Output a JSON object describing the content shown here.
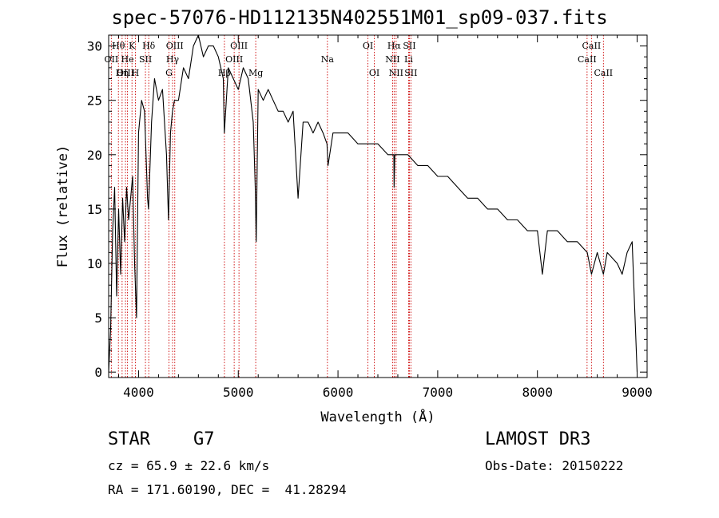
{
  "title": "spec-57076-HD112135N402551M01_sp09-037.fits",
  "object_class": "STAR",
  "subclass": "G7",
  "survey": "LAMOST DR3",
  "redshift_text": "cz = 65.9 ± 22.6 km/s",
  "obs_date_text": "Obs-Date: 20150222",
  "coords_text": "RA = 171.60190, DEC =  41.28294",
  "colors": {
    "axis": "#000000",
    "spectrum": "#000000",
    "lines": "#cc0000"
  },
  "chart_data": {
    "type": "line",
    "title": "spec-57076-HD112135N402551M01_sp09-037.fits",
    "xlabel": "Wavelength (Å)",
    "ylabel": "Flux (relative)",
    "xlim": [
      3700,
      9100
    ],
    "ylim": [
      -0.5,
      31
    ],
    "xticks": [
      4000,
      5000,
      6000,
      7000,
      8000,
      9000
    ],
    "yticks": [
      0,
      5,
      10,
      15,
      20,
      25,
      30
    ],
    "series": [
      {
        "name": "spectrum",
        "x": [
          3700,
          3720,
          3740,
          3760,
          3780,
          3800,
          3820,
          3840,
          3860,
          3880,
          3900,
          3920,
          3940,
          3960,
          3980,
          4000,
          4030,
          4060,
          4090,
          4100,
          4130,
          4160,
          4200,
          4240,
          4280,
          4300,
          4320,
          4340,
          4360,
          4400,
          4450,
          4500,
          4550,
          4600,
          4650,
          4700,
          4750,
          4800,
          4850,
          4860,
          4900,
          4950,
          5000,
          5050,
          5100,
          5150,
          5170,
          5180,
          5200,
          5250,
          5300,
          5350,
          5400,
          5450,
          5500,
          5550,
          5600,
          5650,
          5700,
          5750,
          5800,
          5850,
          5890,
          5900,
          5950,
          6000,
          6100,
          6200,
          6300,
          6400,
          6500,
          6560,
          6563,
          6570,
          6600,
          6700,
          6800,
          6900,
          7000,
          7100,
          7200,
          7300,
          7400,
          7500,
          7600,
          7700,
          7800,
          7900,
          8000,
          8050,
          8100,
          8200,
          8300,
          8400,
          8500,
          8542,
          8600,
          8662,
          8700,
          8800,
          8850,
          8900,
          8950,
          9000
        ],
        "y": [
          0,
          4,
          13,
          17,
          7,
          15,
          9,
          16,
          12,
          17,
          14,
          16,
          18,
          10,
          5,
          22,
          25,
          24,
          16,
          15,
          23,
          27,
          25,
          26,
          20,
          14,
          22,
          24,
          25,
          25,
          28,
          27,
          30,
          31,
          29,
          30,
          30,
          29,
          27,
          22,
          28,
          27,
          26,
          28,
          27,
          23,
          17,
          12,
          26,
          25,
          26,
          25,
          24,
          24,
          23,
          24,
          16,
          23,
          23,
          22,
          23,
          22,
          21,
          19,
          22,
          22,
          22,
          21,
          21,
          21,
          20,
          20,
          17,
          20,
          20,
          20,
          19,
          19,
          18,
          18,
          17,
          16,
          16,
          15,
          15,
          14,
          14,
          13,
          13,
          9,
          13,
          13,
          12,
          12,
          11,
          9,
          11,
          9,
          11,
          10,
          9,
          11,
          12,
          0
        ]
      }
    ],
    "line_markers": [
      {
        "label": "Hθ",
        "x": 3798,
        "row": 1
      },
      {
        "label": "OII",
        "x": 3727,
        "row": 2
      },
      {
        "label": "OIII",
        "x": 3869,
        "row": 3
      },
      {
        "label": "K",
        "x": 3934,
        "row": 1
      },
      {
        "label": "He",
        "x": 3889,
        "row": 2
      },
      {
        "label": "Hη",
        "x": 3835,
        "row": 3
      },
      {
        "label": "Hδ",
        "x": 4102,
        "row": 1
      },
      {
        "label": "SII",
        "x": 4069,
        "row": 2
      },
      {
        "label": "H",
        "x": 3968,
        "row": 3
      },
      {
        "label": "OIII",
        "x": 4363,
        "row": 1
      },
      {
        "label": "Hγ",
        "x": 4341,
        "row": 2
      },
      {
        "label": "G",
        "x": 4305,
        "row": 3
      },
      {
        "label": "OIII",
        "x": 5007,
        "row": 1
      },
      {
        "label": "OIII",
        "x": 4959,
        "row": 2
      },
      {
        "label": "Hβ",
        "x": 4861,
        "row": 3
      },
      {
        "label": "Mg",
        "x": 5175,
        "row": 3
      },
      {
        "label": "Na",
        "x": 5894,
        "row": 2
      },
      {
        "label": "OI",
        "x": 6300,
        "row": 1
      },
      {
        "label": "OI",
        "x": 6364,
        "row": 3
      },
      {
        "label": "Hα",
        "x": 6563,
        "row": 1
      },
      {
        "label": "SII",
        "x": 6716,
        "row": 1
      },
      {
        "label": "NII",
        "x": 6548,
        "row": 2
      },
      {
        "label": "Li",
        "x": 6708,
        "row": 2
      },
      {
        "label": "NII",
        "x": 6583,
        "row": 3
      },
      {
        "label": "SII",
        "x": 6731,
        "row": 3
      },
      {
        "label": "CaII",
        "x": 8542,
        "row": 1
      },
      {
        "label": "CaII",
        "x": 8498,
        "row": 2
      },
      {
        "label": "CaII",
        "x": 8662,
        "row": 3
      }
    ]
  }
}
